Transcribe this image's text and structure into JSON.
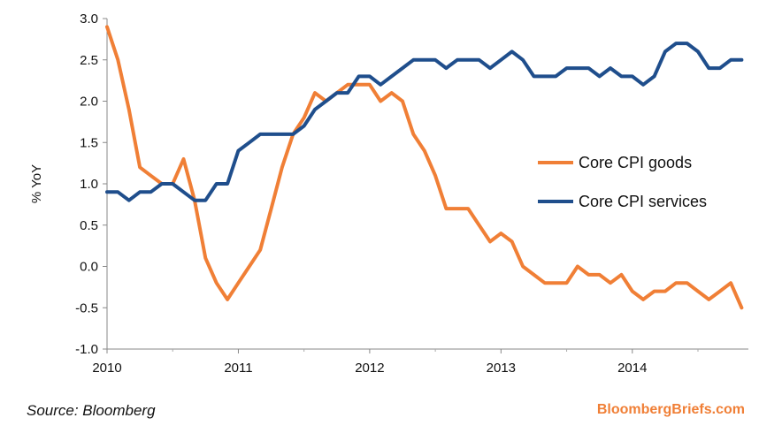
{
  "chart_data": {
    "type": "line",
    "ylabel": "% YoY",
    "ylim": [
      -1.0,
      3.0
    ],
    "yticks": [
      "3.0",
      "2.5",
      "2.0",
      "1.5",
      "1.0",
      "0.5",
      "0.0",
      "-0.5",
      "-1.0"
    ],
    "xlim": [
      2010,
      2014.83
    ],
    "xticks": [
      "2010",
      "2011",
      "2012",
      "2013",
      "2014"
    ],
    "grid": false,
    "legend_position": "right-middle",
    "series": [
      {
        "name": "Core CPI goods",
        "color": "#f07f36",
        "x": [
          2010.0,
          2010.083,
          2010.167,
          2010.25,
          2010.333,
          2010.417,
          2010.5,
          2010.583,
          2010.667,
          2010.75,
          2010.833,
          2010.917,
          2011.0,
          2011.083,
          2011.167,
          2011.25,
          2011.333,
          2011.417,
          2011.5,
          2011.583,
          2011.667,
          2011.75,
          2011.833,
          2011.917,
          2012.0,
          2012.083,
          2012.167,
          2012.25,
          2012.333,
          2012.417,
          2012.5,
          2012.583,
          2012.667,
          2012.75,
          2012.833,
          2012.917,
          2013.0,
          2013.083,
          2013.167,
          2013.25,
          2013.333,
          2013.417,
          2013.5,
          2013.583,
          2013.667,
          2013.75,
          2013.833,
          2013.917,
          2014.0,
          2014.083,
          2014.167,
          2014.25,
          2014.333,
          2014.417,
          2014.5,
          2014.583,
          2014.667,
          2014.75,
          2014.833
        ],
        "values": [
          2.9,
          2.5,
          1.9,
          1.2,
          1.1,
          1.0,
          1.0,
          1.3,
          0.8,
          0.1,
          -0.2,
          -0.4,
          -0.2,
          0.0,
          0.2,
          0.7,
          1.2,
          1.6,
          1.8,
          2.1,
          2.0,
          2.1,
          2.2,
          2.2,
          2.2,
          2.0,
          2.1,
          2.0,
          1.6,
          1.4,
          1.1,
          0.7,
          0.7,
          0.7,
          0.5,
          0.3,
          0.4,
          0.3,
          0.0,
          -0.1,
          -0.2,
          -0.2,
          -0.2,
          0.0,
          -0.1,
          -0.1,
          -0.2,
          -0.1,
          -0.3,
          -0.4,
          -0.3,
          -0.3,
          -0.2,
          -0.2,
          -0.3,
          -0.4,
          -0.3,
          -0.2,
          -0.5
        ]
      },
      {
        "name": "Core CPI services",
        "color": "#1f4e8c",
        "x": [
          2010.0,
          2010.083,
          2010.167,
          2010.25,
          2010.333,
          2010.417,
          2010.5,
          2010.583,
          2010.667,
          2010.75,
          2010.833,
          2010.917,
          2011.0,
          2011.083,
          2011.167,
          2011.25,
          2011.333,
          2011.417,
          2011.5,
          2011.583,
          2011.667,
          2011.75,
          2011.833,
          2011.917,
          2012.0,
          2012.083,
          2012.167,
          2012.25,
          2012.333,
          2012.417,
          2012.5,
          2012.583,
          2012.667,
          2012.75,
          2012.833,
          2012.917,
          2013.0,
          2013.083,
          2013.167,
          2013.25,
          2013.333,
          2013.417,
          2013.5,
          2013.583,
          2013.667,
          2013.75,
          2013.833,
          2013.917,
          2014.0,
          2014.083,
          2014.167,
          2014.25,
          2014.333,
          2014.417,
          2014.5,
          2014.583,
          2014.667,
          2014.75,
          2014.833
        ],
        "values": [
          0.9,
          0.9,
          0.8,
          0.9,
          0.9,
          1.0,
          1.0,
          0.9,
          0.8,
          0.8,
          1.0,
          1.0,
          1.4,
          1.5,
          1.6,
          1.6,
          1.6,
          1.6,
          1.7,
          1.9,
          2.0,
          2.1,
          2.1,
          2.3,
          2.3,
          2.2,
          2.3,
          2.4,
          2.5,
          2.5,
          2.5,
          2.4,
          2.5,
          2.5,
          2.5,
          2.4,
          2.5,
          2.6,
          2.5,
          2.3,
          2.3,
          2.3,
          2.4,
          2.4,
          2.4,
          2.3,
          2.4,
          2.3,
          2.3,
          2.2,
          2.3,
          2.6,
          2.7,
          2.7,
          2.6,
          2.4,
          2.4,
          2.5,
          2.5
        ]
      }
    ],
    "source": "Source: Bloomberg",
    "brand": "BloombergBriefs.com"
  }
}
